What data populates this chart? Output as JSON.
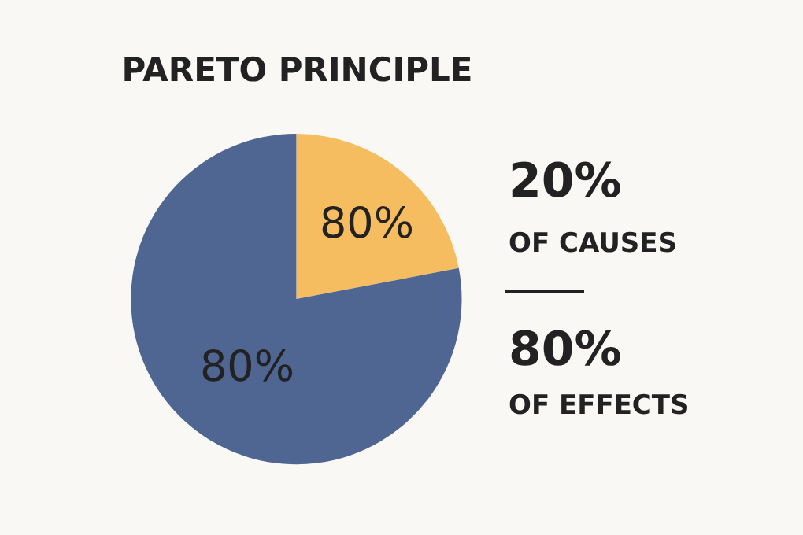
{
  "chart_data": {
    "type": "pie",
    "title": "PARETO PRINCIPLE",
    "categories": [
      null,
      null
    ],
    "values": [
      22,
      78
    ],
    "colors": [
      "#f6bd60",
      "#4f6592"
    ],
    "annotations": [
      "80%",
      "80%",
      "20%",
      "OF CAUSES",
      "80%",
      "OF EFFECTS"
    ],
    "legend": false
  }
}
